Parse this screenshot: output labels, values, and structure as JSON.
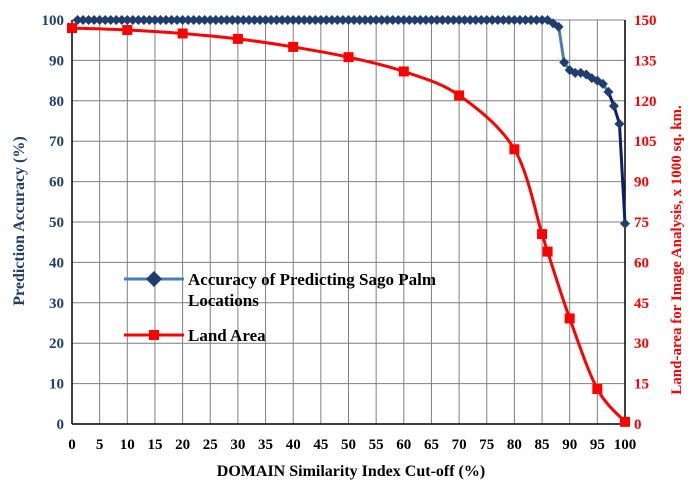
{
  "chart_data": {
    "type": "line",
    "xlabel": "DOMAIN Similarity Index Cut-off (%)",
    "ylabel_left": "Prediction Accuracy (%)",
    "ylabel_right": "Land-area for Image Analysis, x 1000 sq. km.",
    "xlim": [
      0,
      100
    ],
    "ylim_left": [
      0,
      100
    ],
    "ylim_right": [
      0,
      150
    ],
    "x_ticks": [
      "0",
      "5",
      "10",
      "15",
      "20",
      "25",
      "30",
      "35",
      "40",
      "45",
      "50",
      "55",
      "60",
      "65",
      "70",
      "75",
      "80",
      "85",
      "90",
      "95",
      "100"
    ],
    "y_left_ticks": [
      "0",
      "10",
      "20",
      "30",
      "40",
      "50",
      "60",
      "70",
      "80",
      "90",
      "100"
    ],
    "y_right_ticks": [
      "0",
      "15",
      "30",
      "45",
      "60",
      "75",
      "90",
      "105",
      "120",
      "135",
      "150"
    ],
    "grid": true,
    "legend_position": "left-middle",
    "colors": {
      "accuracy_line": "#4a7ebb",
      "accuracy_marker": "#1f3d6e",
      "accuracy_tail": "#0b1f6b",
      "land_line": "#ff0000",
      "land_marker": "#ff0000",
      "grid": "#7f7f7f",
      "axis": "#000000"
    },
    "series": [
      {
        "name": "Accuracy of Predicting Sago Palm Locations",
        "name_lines": [
          "Accuracy of Predicting Sago Palm",
          "Locations"
        ],
        "axis": "left",
        "marker": "diamond",
        "points": [
          [
            1,
            100
          ],
          [
            2,
            100
          ],
          [
            3,
            100
          ],
          [
            4,
            100
          ],
          [
            5,
            100
          ],
          [
            6,
            100
          ],
          [
            7,
            100
          ],
          [
            8,
            100
          ],
          [
            9,
            100
          ],
          [
            10,
            100
          ],
          [
            11,
            100
          ],
          [
            12,
            100
          ],
          [
            13,
            100
          ],
          [
            14,
            100
          ],
          [
            15,
            100
          ],
          [
            16,
            100
          ],
          [
            17,
            100
          ],
          [
            18,
            100
          ],
          [
            19,
            100
          ],
          [
            20,
            100
          ],
          [
            21,
            100
          ],
          [
            22,
            100
          ],
          [
            23,
            100
          ],
          [
            24,
            100
          ],
          [
            25,
            100
          ],
          [
            26,
            100
          ],
          [
            27,
            100
          ],
          [
            28,
            100
          ],
          [
            29,
            100
          ],
          [
            30,
            100
          ],
          [
            31,
            100
          ],
          [
            32,
            100
          ],
          [
            33,
            100
          ],
          [
            34,
            100
          ],
          [
            35,
            100
          ],
          [
            36,
            100
          ],
          [
            37,
            100
          ],
          [
            38,
            100
          ],
          [
            39,
            100
          ],
          [
            40,
            100
          ],
          [
            41,
            100
          ],
          [
            42,
            100
          ],
          [
            43,
            100
          ],
          [
            44,
            100
          ],
          [
            45,
            100
          ],
          [
            46,
            100
          ],
          [
            47,
            100
          ],
          [
            48,
            100
          ],
          [
            49,
            100
          ],
          [
            50,
            100
          ],
          [
            51,
            100
          ],
          [
            52,
            100
          ],
          [
            53,
            100
          ],
          [
            54,
            100
          ],
          [
            55,
            100
          ],
          [
            56,
            100
          ],
          [
            57,
            100
          ],
          [
            58,
            100
          ],
          [
            59,
            100
          ],
          [
            60,
            100
          ],
          [
            61,
            100
          ],
          [
            62,
            100
          ],
          [
            63,
            100
          ],
          [
            64,
            100
          ],
          [
            65,
            100
          ],
          [
            66,
            100
          ],
          [
            67,
            100
          ],
          [
            68,
            100
          ],
          [
            69,
            100
          ],
          [
            70,
            100
          ],
          [
            71,
            100
          ],
          [
            72,
            100
          ],
          [
            73,
            100
          ],
          [
            74,
            100
          ],
          [
            75,
            100
          ],
          [
            76,
            100
          ],
          [
            77,
            100
          ],
          [
            78,
            100
          ],
          [
            79,
            100
          ],
          [
            80,
            100
          ],
          [
            81,
            100
          ],
          [
            82,
            100
          ],
          [
            83,
            100
          ],
          [
            84,
            100
          ],
          [
            85,
            100
          ],
          [
            86,
            100
          ],
          [
            87,
            99.2
          ],
          [
            88,
            98.3
          ],
          [
            89,
            89.5
          ],
          [
            90,
            87.6
          ],
          [
            91,
            86.9
          ],
          [
            92,
            86.9
          ],
          [
            93,
            86.5
          ],
          [
            94,
            85.6
          ],
          [
            95,
            85
          ],
          [
            96,
            84.2
          ],
          [
            97,
            82.2
          ],
          [
            98,
            78.7
          ],
          [
            99,
            74.3
          ],
          [
            100,
            49.6
          ]
        ]
      },
      {
        "name": "Land Area",
        "axis": "right",
        "marker": "square",
        "points": [
          [
            0,
            147
          ],
          [
            10,
            146.3
          ],
          [
            20,
            145
          ],
          [
            30,
            143
          ],
          [
            40,
            140
          ],
          [
            50,
            136.2
          ],
          [
            60,
            130.9
          ],
          [
            70,
            122
          ],
          [
            80,
            102
          ],
          [
            85,
            70.5
          ],
          [
            86,
            64
          ],
          [
            90,
            39.2
          ],
          [
            95,
            13
          ],
          [
            100,
            0.8
          ]
        ]
      }
    ]
  }
}
